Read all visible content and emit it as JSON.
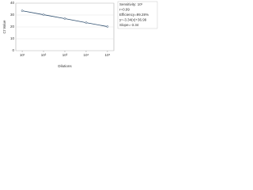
{
  "chart_data": {
    "type": "line",
    "xlabel": "Dilutions",
    "ylabel": "Ct Value",
    "x": [
      1,
      2,
      3,
      4,
      5
    ],
    "series": [
      {
        "name": "Ct",
        "color": "#2f4f6f",
        "values": [
          33.6,
          30.3,
          27.0,
          23.6,
          20.3
        ]
      }
    ],
    "xlim": [
      0.7,
      5.3
    ],
    "xticks": [
      {
        "value": 1,
        "label": "10¹"
      },
      {
        "value": 2,
        "label": "10²"
      },
      {
        "value": 3,
        "label": "10³"
      },
      {
        "value": 4,
        "label": "10⁴"
      },
      {
        "value": 5,
        "label": "10⁵"
      }
    ],
    "ylim": [
      0,
      40
    ],
    "yticks": [
      0,
      10,
      20,
      30,
      40
    ],
    "grid": true,
    "annotations": [
      "Sensitivity: 10¹",
      "r=0.99",
      "Efficiency=99.28%",
      "y=-3.34(x)+36.99",
      "Slope=-3.34"
    ]
  }
}
